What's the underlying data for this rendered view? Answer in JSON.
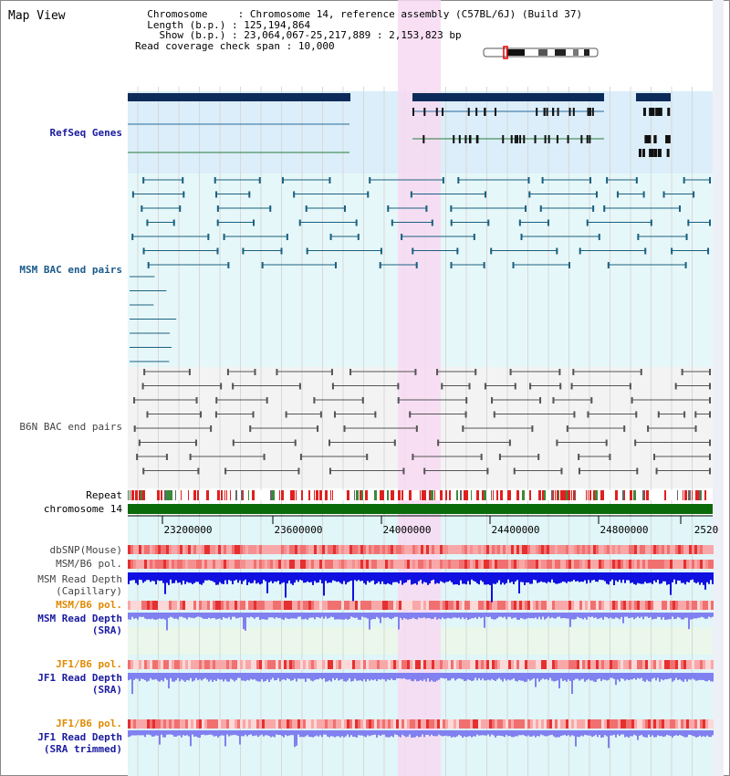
{
  "title": "Map View",
  "info": {
    "chromosome_label": "Chromosome",
    "chromosome_value": "Chromosome 14, reference assembly (C57BL/6J) (Build 37)",
    "length_label": "Length (b.p.)",
    "length_value": "125,194,864",
    "show_label": "Show (b.p.)",
    "show_value": "23,064,067-25,217,889 : 2,153,823 bp",
    "coverage_label": "Read coverage check span",
    "coverage_value": "10,000"
  },
  "tracks": {
    "refseq": "RefSeq Genes",
    "msm_bac": "MSM BAC end pairs",
    "b6n_bac": "B6N BAC end pairs",
    "repeat": "Repeat",
    "chromosome": "chromosome 14",
    "dbsnp": "dbSNP(Mouse)",
    "msm_b6_pol": "MSM/B6 pol.",
    "msm_depth_cap_1": "MSM Read Depth",
    "msm_depth_cap_2": "(Capillary)",
    "msm_b6_pol2": "MSM/B6 pol.",
    "msm_depth_sra_1": "MSM Read Depth",
    "msm_depth_sra_2": "(SRA)",
    "jf1_b6_pol": "JF1/B6 pol.",
    "jf1_depth_sra_1": "JF1 Read Depth",
    "jf1_depth_sra_2": "(SRA)",
    "jf1_b6_pol2": "JF1/B6 pol.",
    "jf1_depth_trim_1": "JF1 Read Depth",
    "jf1_depth_trim_2": "(SRA trimmed)"
  },
  "axis": {
    "ticks": [
      "23200000",
      "23600000",
      "24000000",
      "24400000",
      "24800000",
      "2520"
    ]
  },
  "colors": {
    "refseq_label": "#1a1aa0",
    "msm_label": "#1a5a8a",
    "b6n_label": "#444444",
    "orange_label": "#e08a00",
    "blue_label": "#1a1aa0",
    "highlight": "#f7d9f2",
    "gene_bar": "#0c2a5a",
    "repeat_red": "#e02020",
    "chrom_green": "#0a6b0a",
    "depth_blue": "#1010e0",
    "depth_light": "#8080f0"
  }
}
